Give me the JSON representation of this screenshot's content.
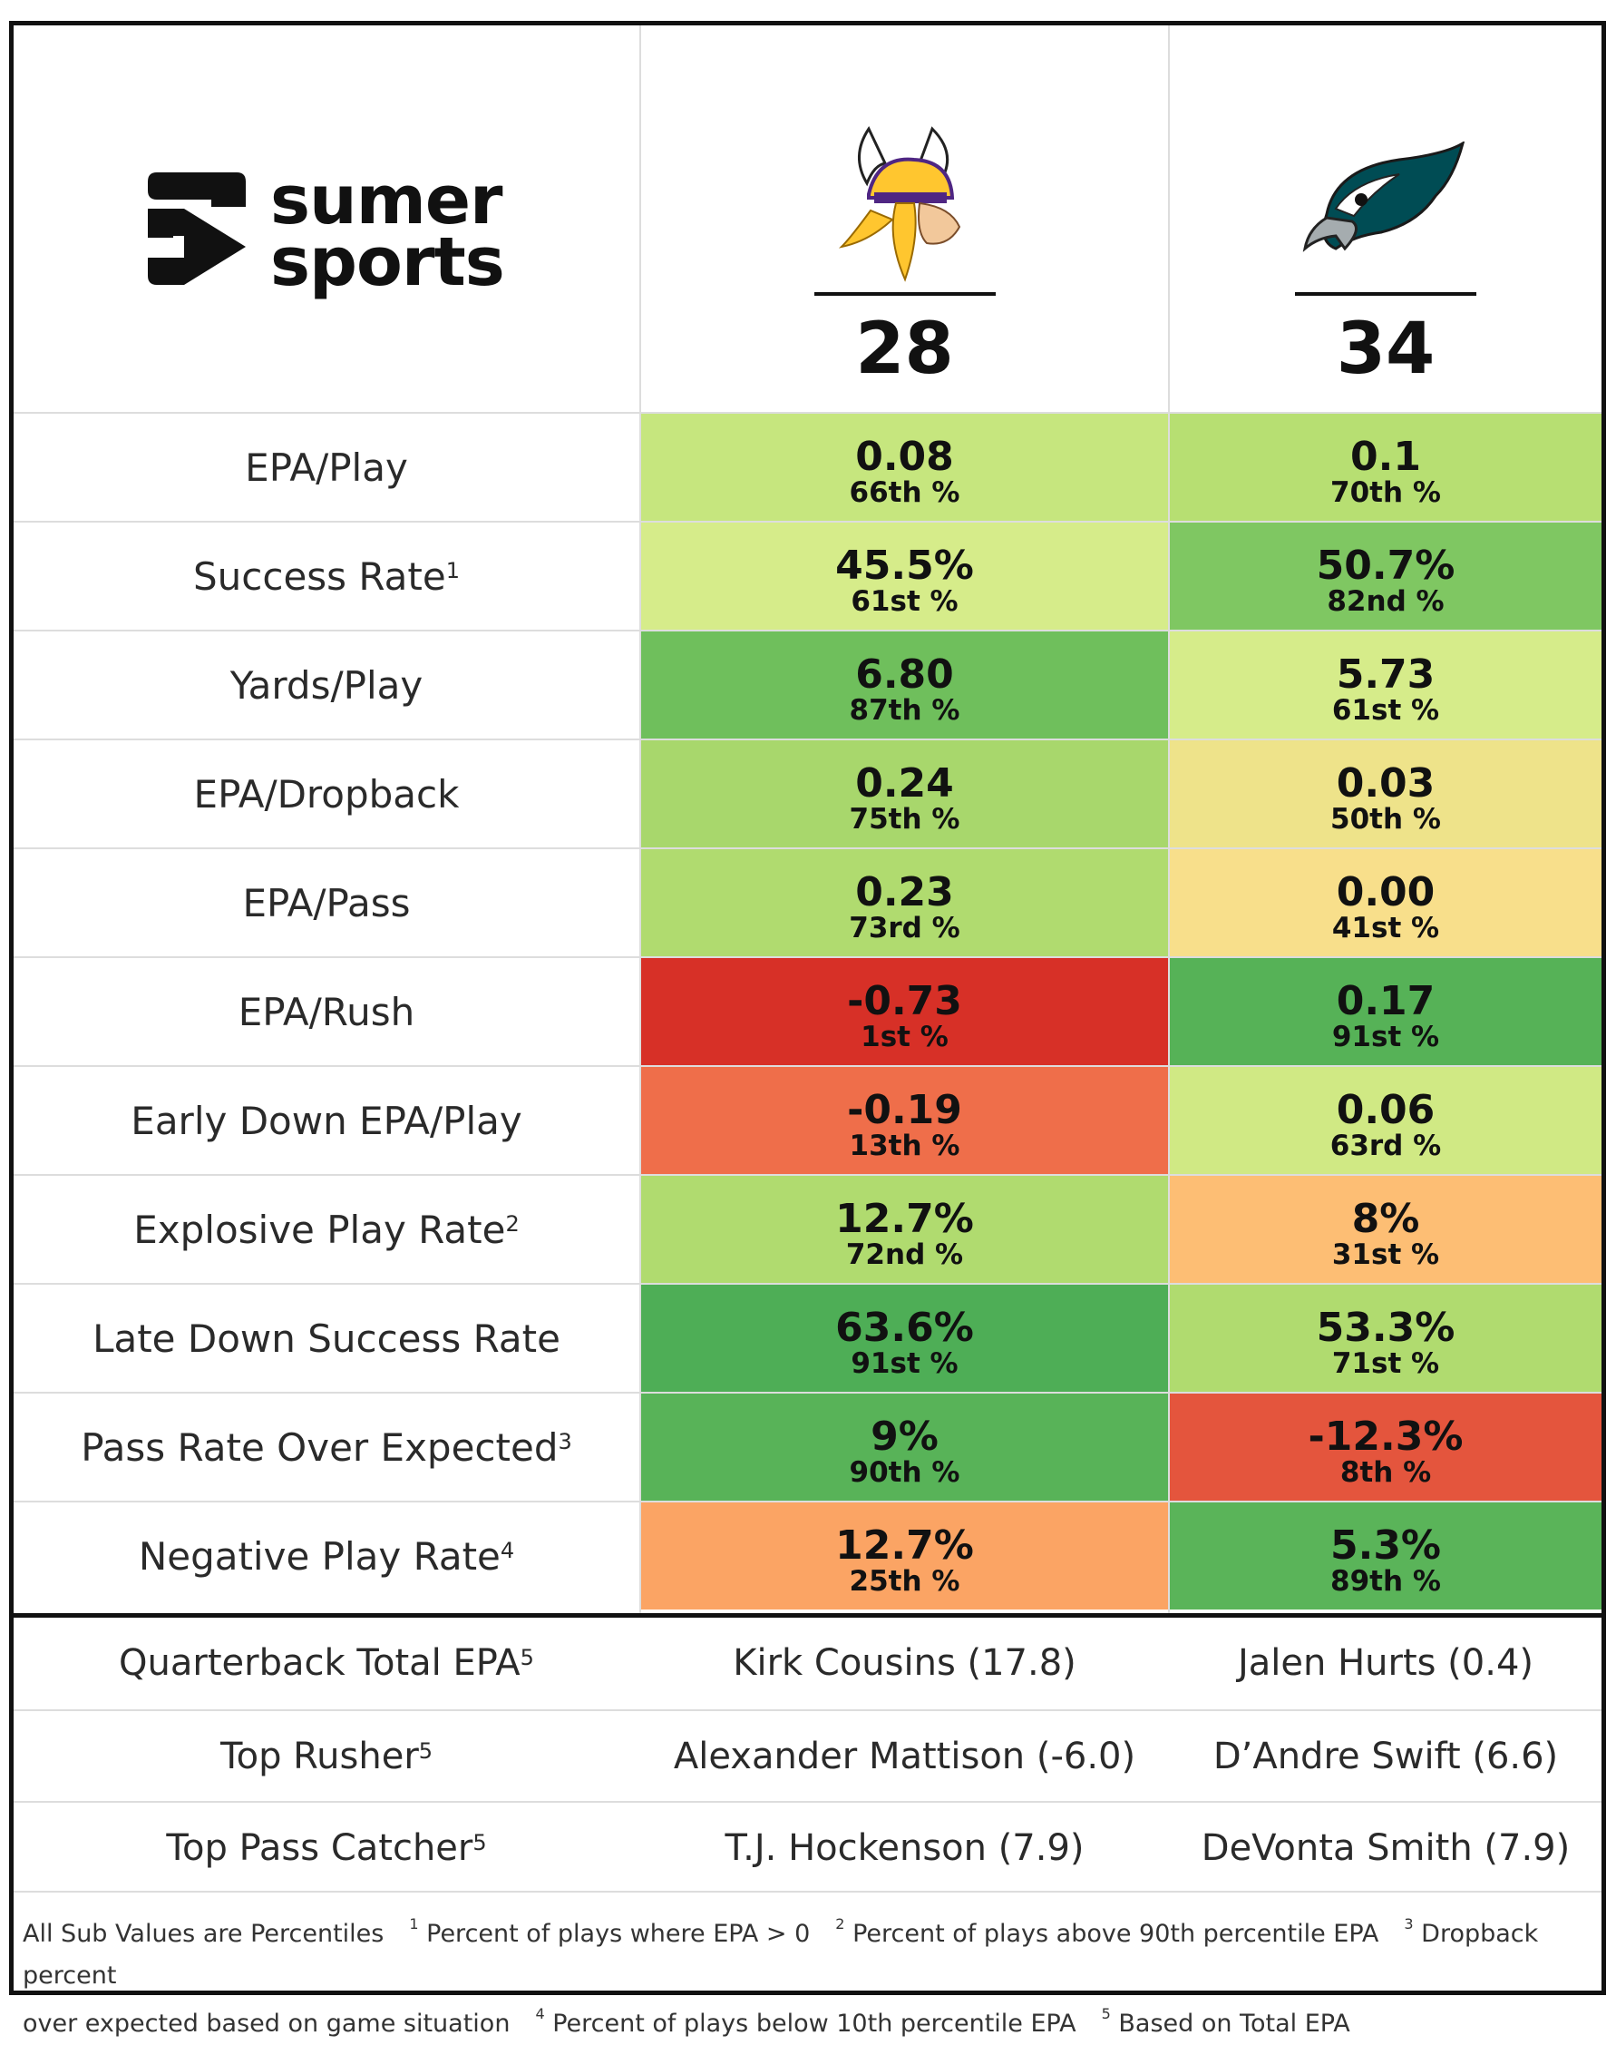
{
  "brand": {
    "line1": "sumer",
    "line2": "sports"
  },
  "teams": [
    {
      "name_icon": "vikings-helmet-logo-icon",
      "score": "28"
    },
    {
      "name_icon": "eagles-head-logo-icon",
      "score": "34"
    }
  ],
  "stats": [
    {
      "label": "EPA/Play",
      "note": "",
      "a": {
        "value": "0.08",
        "pct": "66th %",
        "color": "#c6e67e"
      },
      "b": {
        "value": "0.1",
        "pct": "70th %",
        "color": "#b7df72"
      }
    },
    {
      "label": "Success Rate",
      "note": "1",
      "a": {
        "value": "45.5%",
        "pct": "61st %",
        "color": "#d6ec8a"
      },
      "b": {
        "value": "50.7%",
        "pct": "82nd %",
        "color": "#7fc762"
      }
    },
    {
      "label": "Yards/Play",
      "note": "",
      "a": {
        "value": "6.80",
        "pct": "87th %",
        "color": "#6fbf5c"
      },
      "b": {
        "value": "5.73",
        "pct": "61st %",
        "color": "#d6ec8a"
      }
    },
    {
      "label": "EPA/Dropback",
      "note": "",
      "a": {
        "value": "0.24",
        "pct": "75th %",
        "color": "#a8d76c"
      },
      "b": {
        "value": "0.03",
        "pct": "50th %",
        "color": "#eee38a"
      }
    },
    {
      "label": "EPA/Pass",
      "note": "",
      "a": {
        "value": "0.23",
        "pct": "73rd %",
        "color": "#b0db6f"
      },
      "b": {
        "value": "0.00",
        "pct": "41st %",
        "color": "#f8df8b"
      }
    },
    {
      "label": "EPA/Rush",
      "note": "",
      "a": {
        "value": "-0.73",
        "pct": "1st %",
        "color": "#d73027"
      },
      "b": {
        "value": "0.17",
        "pct": "91st %",
        "color": "#56b257"
      }
    },
    {
      "label": "Early Down EPA/Play",
      "note": "",
      "a": {
        "value": "-0.19",
        "pct": "13th %",
        "color": "#ef6e4a"
      },
      "b": {
        "value": "0.06",
        "pct": "63rd %",
        "color": "#d0e984"
      }
    },
    {
      "label": "Explosive Play Rate",
      "note": "2",
      "a": {
        "value": "12.7%",
        "pct": "72nd %",
        "color": "#b0db6f"
      },
      "b": {
        "value": "8%",
        "pct": "31st %",
        "color": "#fdbe74"
      }
    },
    {
      "label": "Late Down Success Rate",
      "note": "",
      "a": {
        "value": "63.6%",
        "pct": "91st %",
        "color": "#4eae56"
      },
      "b": {
        "value": "53.3%",
        "pct": "71st %",
        "color": "#b0db6f"
      }
    },
    {
      "label": "Pass Rate Over Expected",
      "note": "3",
      "a": {
        "value": "9%",
        "pct": "90th %",
        "color": "#58b358"
      },
      "b": {
        "value": "-12.3%",
        "pct": "8th %",
        "color": "#e4553d"
      }
    },
    {
      "label": "Negative Play Rate",
      "note": "4",
      "a": {
        "value": "12.7%",
        "pct": "25th %",
        "color": "#fba464"
      },
      "b": {
        "value": "5.3%",
        "pct": "89th %",
        "color": "#5ab459"
      }
    }
  ],
  "players": [
    {
      "label": "Quarterback Total EPA",
      "note": "5",
      "a": "Kirk Cousins (17.8)",
      "b": "Jalen Hurts (0.4)"
    },
    {
      "label": "Top Rusher",
      "note": "5",
      "a": "Alexander Mattison (-6.0)",
      "b": "D’Andre Swift (6.6)"
    },
    {
      "label": "Top Pass Catcher",
      "note": "5",
      "a": "T.J. Hockenson (7.9)",
      "b": "DeVonta Smith (7.9)"
    }
  ],
  "footnotes": {
    "intro": "All Sub Values are Percentiles",
    "n1": "Percent of plays where EPA > 0",
    "n2": "Percent of plays above 90th percentile EPA",
    "n3a": "Dropback percent",
    "n3b": "over expected based on game situation",
    "n4": "Percent of plays below 10th percentile EPA",
    "n5": "Based on Total EPA",
    "marks": [
      "1",
      "2",
      "3",
      "4",
      "5"
    ]
  }
}
